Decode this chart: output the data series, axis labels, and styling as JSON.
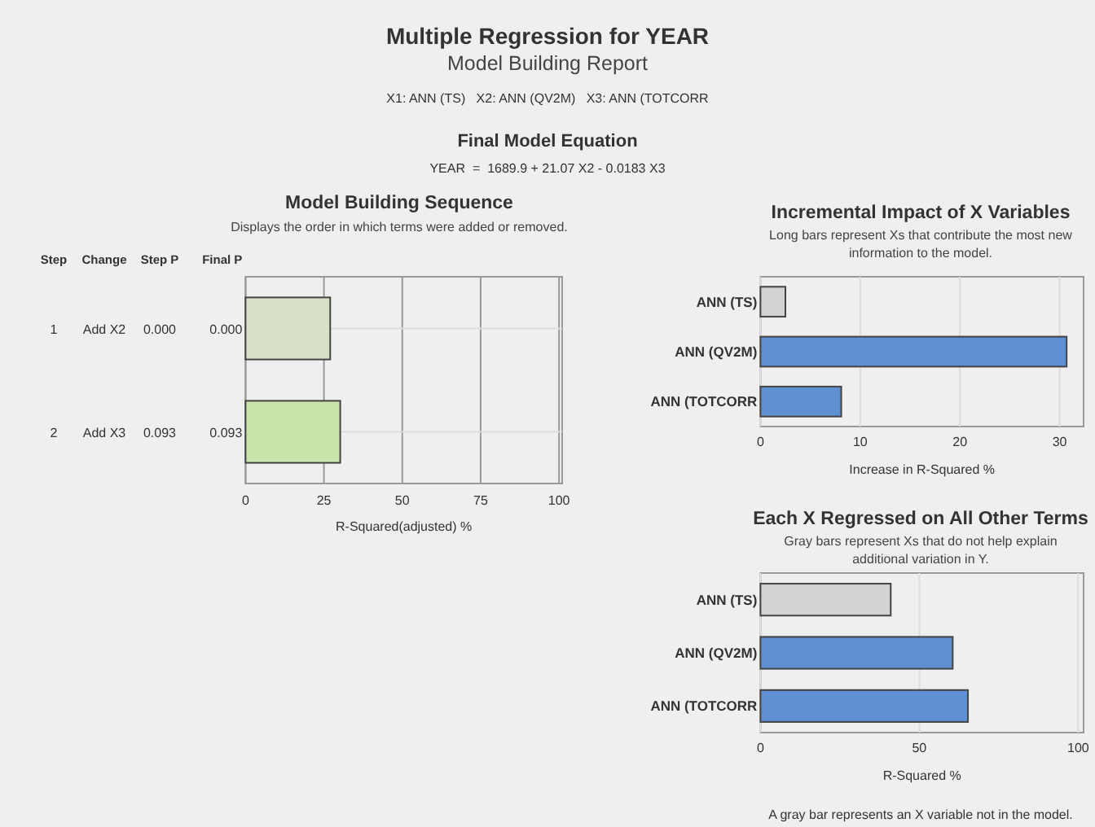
{
  "chart_data": [
    {
      "type": "other",
      "title": "Multiple Regression for YEAR",
      "subtitle": "Model Building Report",
      "annotations": [
        "X1: ANN (TS)   X2: ANN (QV2M)   X3: ANN (TOTCORR",
        "Final Model Equation",
        "YEAR  =  1689.9 + 21.07 X2 - 0.0183 X3"
      ]
    },
    {
      "type": "bar",
      "orientation": "horizontal",
      "title": "Model Building Sequence",
      "subtitle": "Displays the order in which terms were added or removed.",
      "xlabel": "R-Squared(adjusted) %",
      "categories": [
        "0.000",
        "0.093"
      ],
      "values": [
        27,
        30.2
      ],
      "colors": [
        "#d9e2c9",
        "#c9e4ab"
      ],
      "xlim": [
        0,
        101
      ],
      "xticks": [
        0,
        25,
        50,
        75,
        100
      ],
      "grid": true,
      "annotations": [
        "Step",
        "Change",
        "Step P",
        "Final P",
        "1",
        "Add X2",
        "0.000",
        "2",
        "Add X3",
        "0.093"
      ]
    },
    {
      "type": "bar",
      "orientation": "horizontal",
      "title": "Incremental Impact of X Variables",
      "subtitle": "Long bars represent Xs that contribute the most new information to the model.",
      "xlabel": "Increase in R-Squared %",
      "categories": [
        "ANN (TS)",
        "ANN (QV2M)",
        "ANN (TOTCORR"
      ],
      "values": [
        2.5,
        30.7,
        8.1
      ],
      "colors": [
        "#d3d3d3",
        "#5f90d2",
        "#5f90d2"
      ],
      "xlim": [
        0,
        32.4
      ],
      "xticks": [
        0,
        10,
        20,
        30
      ],
      "grid": "x"
    },
    {
      "type": "bar",
      "orientation": "horizontal",
      "title": "Each X Regressed on All Other Terms",
      "subtitle": "Gray bars represent Xs that do not help explain additional variation in Y.",
      "xlabel": "R-Squared %",
      "categories": [
        "ANN (TS)",
        "ANN (QV2M)",
        "ANN (TOTCORR"
      ],
      "values": [
        41,
        60.5,
        65.3
      ],
      "colors": [
        "#d3d3d3",
        "#5f90d2",
        "#5f90d2"
      ],
      "xlim": [
        0,
        101.7
      ],
      "xticks": [
        0,
        50,
        100
      ],
      "grid": "x",
      "annotations": [
        "A gray bar represents an X variable not in the model."
      ]
    }
  ]
}
